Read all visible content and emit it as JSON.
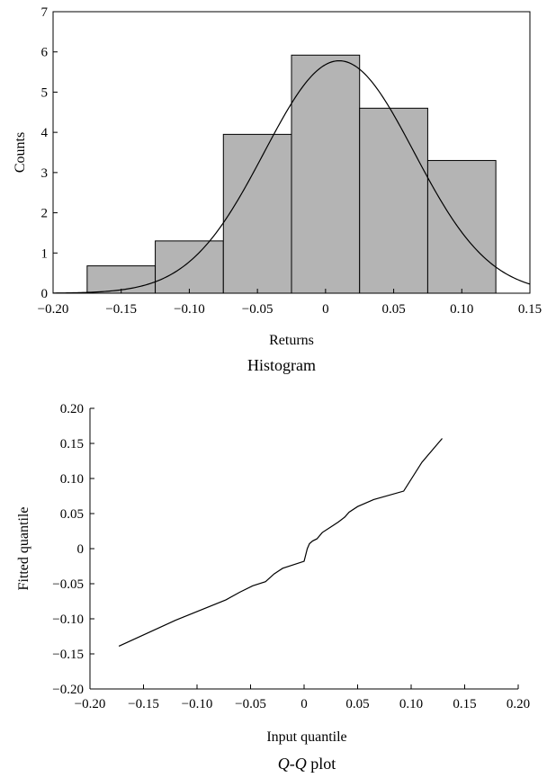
{
  "chart_data": [
    {
      "type": "bar",
      "caption": "Histogram",
      "xlabel": "Returns",
      "ylabel": "Counts",
      "xlim": [
        -0.2,
        0.15
      ],
      "ylim": [
        0,
        7
      ],
      "xticks": [
        -0.2,
        -0.15,
        -0.1,
        -0.05,
        0,
        0.05,
        0.1,
        0.15
      ],
      "xtick_labels": [
        "−0.20",
        "−0.15",
        "−0.10",
        "−0.05",
        "0",
        "0.05",
        "0.10",
        "0.15"
      ],
      "yticks": [
        0,
        1,
        2,
        3,
        4,
        5,
        6,
        7
      ],
      "ytick_labels": [
        "0",
        "1",
        "2",
        "3",
        "4",
        "5",
        "6",
        "7"
      ],
      "bins": [
        {
          "x0": -0.175,
          "x1": -0.125,
          "count": 0.68
        },
        {
          "x0": -0.125,
          "x1": -0.075,
          "count": 1.3
        },
        {
          "x0": -0.075,
          "x1": -0.025,
          "count": 3.95
        },
        {
          "x0": -0.025,
          "x1": 0.025,
          "count": 5.92
        },
        {
          "x0": 0.025,
          "x1": 0.075,
          "count": 4.6
        },
        {
          "x0": 0.075,
          "x1": 0.125,
          "count": 3.3
        }
      ],
      "fitted_curve": {
        "type": "normal",
        "mean": 0.01,
        "std": 0.055,
        "peak": 5.78
      },
      "bar_color": "#b4b4b4",
      "grid": false
    },
    {
      "type": "line",
      "caption_parts": [
        "Q",
        "-",
        "Q",
        " plot"
      ],
      "xlabel": "Input quantile",
      "ylabel": "Fitted quantile",
      "xlim": [
        -0.2,
        0.2
      ],
      "ylim": [
        -0.2,
        0.2
      ],
      "xticks": [
        -0.2,
        -0.15,
        -0.1,
        -0.05,
        0,
        0.05,
        0.1,
        0.15,
        0.2
      ],
      "xtick_labels": [
        "−0.20",
        "−0.15",
        "−0.10",
        "−0.05",
        "0",
        "0.05",
        "0.10",
        "0.15",
        "0.20"
      ],
      "yticks": [
        -0.2,
        -0.15,
        -0.1,
        -0.05,
        0,
        0.05,
        0.1,
        0.15,
        0.2
      ],
      "ytick_labels": [
        "−0.20",
        "−0.15",
        "−0.10",
        "−0.05",
        "0",
        "0.05",
        "0.10",
        "0.15",
        "0.20"
      ],
      "x": [
        -0.173,
        -0.12,
        -0.073,
        -0.06,
        -0.048,
        -0.036,
        -0.028,
        -0.02,
        -0.01,
        0,
        0.003,
        0.005,
        0.008,
        0.012,
        0.017,
        0.025,
        0.032,
        0.038,
        0.042,
        0.05,
        0.065,
        0.093,
        0.11,
        0.129
      ],
      "y": [
        -0.139,
        -0.102,
        -0.073,
        -0.062,
        -0.053,
        -0.047,
        -0.036,
        -0.028,
        -0.023,
        -0.018,
        0.0,
        0.007,
        0.011,
        0.014,
        0.023,
        0.031,
        0.038,
        0.045,
        0.052,
        0.06,
        0.07,
        0.082,
        0.123,
        0.157
      ],
      "grid": false
    }
  ]
}
